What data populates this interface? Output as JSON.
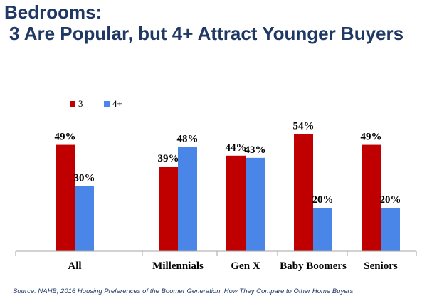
{
  "title": {
    "line1": "Bedrooms:",
    "line2": "3 Are Popular, but 4+ Attract Younger Buyers"
  },
  "colors": {
    "series_3": "#c00000",
    "series_4plus": "#4a86e8",
    "title": "#1f3864",
    "axis": "#a6a6a6"
  },
  "chart_data": {
    "type": "bar",
    "categories": [
      "All",
      "Millennials",
      "Gen X",
      "Baby Boomers",
      "Seniors"
    ],
    "series": [
      {
        "name": "3",
        "values": [
          49,
          39,
          44,
          54,
          49
        ],
        "labels": [
          "49%",
          "39%",
          "44%",
          "54%",
          "49%"
        ]
      },
      {
        "name": "4+",
        "values": [
          30,
          48,
          43,
          20,
          20
        ],
        "labels": [
          "30%",
          "48%",
          "43%",
          "20%",
          "20%"
        ]
      }
    ],
    "ylim": [
      0,
      55
    ],
    "grid": false,
    "legend": "top-left",
    "title": "",
    "xlabel": "",
    "ylabel": ""
  },
  "source": "Source: NAHB, 2016 Housing Preferences of the Boomer Generation: How They Compare to Other Home Buyers"
}
